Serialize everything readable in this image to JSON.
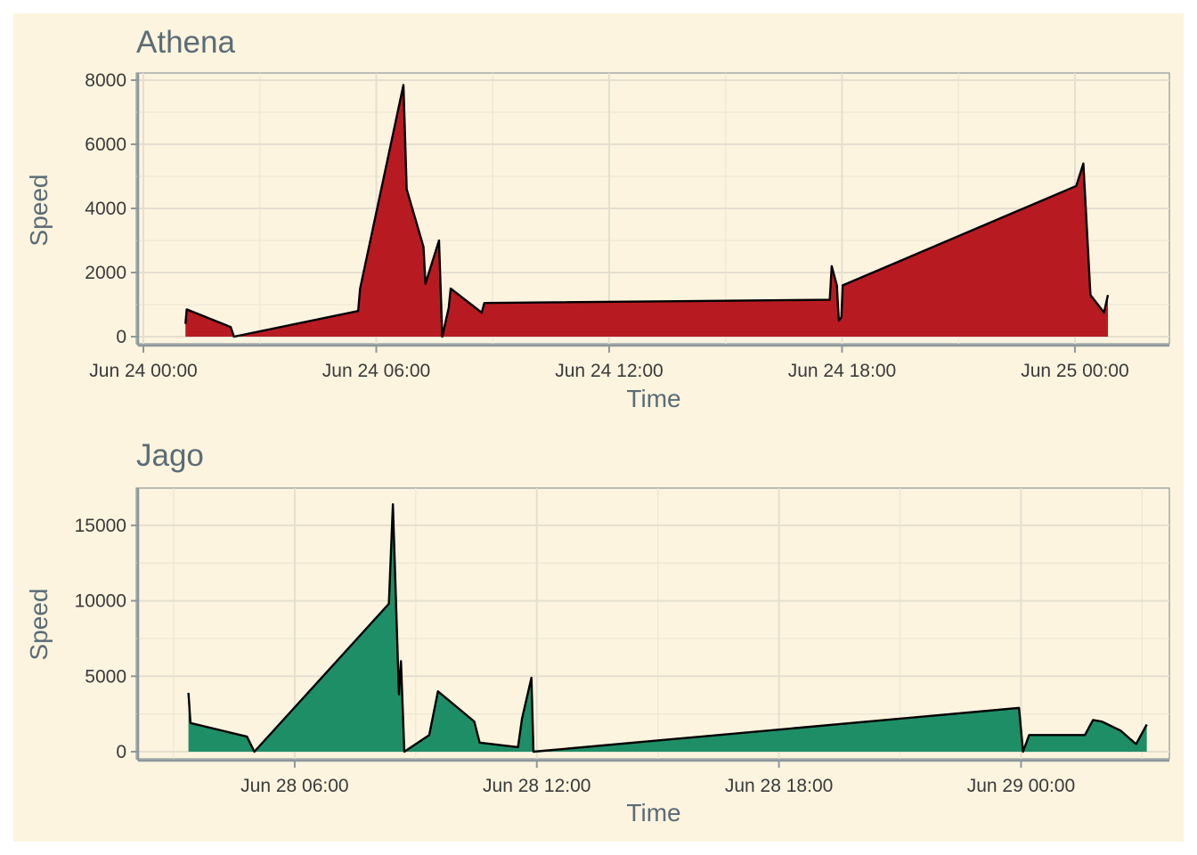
{
  "chart_data": [
    {
      "type": "area",
      "title": "Athena",
      "xlabel": "Time",
      "ylabel": "Speed",
      "fill_color": "#b71b21",
      "outline_color": "#000000",
      "grid": true,
      "legend": "none",
      "xlim": [
        "2024-06-24 00:00",
        "2024-06-25 02:15"
      ],
      "ylim": [
        0,
        8000
      ],
      "x_ticks": [
        {
          "value": "2024-06-24 00:00",
          "label": "Jun 24 00:00"
        },
        {
          "value": "2024-06-24 06:00",
          "label": "Jun 24 06:00"
        },
        {
          "value": "2024-06-24 12:00",
          "label": "Jun 24 12:00"
        },
        {
          "value": "2024-06-24 18:00",
          "label": "Jun 24 18:00"
        },
        {
          "value": "2024-06-25 00:00",
          "label": "Jun 25 00:00"
        }
      ],
      "y_ticks": [
        {
          "value": 0,
          "label": "0"
        },
        {
          "value": 2000,
          "label": "2000"
        },
        {
          "value": 4000,
          "label": "4000"
        },
        {
          "value": 6000,
          "label": "6000"
        },
        {
          "value": 8000,
          "label": "8000"
        }
      ],
      "points": [
        {
          "x": "2024-06-24 01:05",
          "y": 400
        },
        {
          "x": "2024-06-24 01:07",
          "y": 850
        },
        {
          "x": "2024-06-24 02:15",
          "y": 300
        },
        {
          "x": "2024-06-24 02:20",
          "y": 0
        },
        {
          "x": "2024-06-24 05:32",
          "y": 800
        },
        {
          "x": "2024-06-24 05:35",
          "y": 1500
        },
        {
          "x": "2024-06-24 06:42",
          "y": 7850
        },
        {
          "x": "2024-06-24 06:47",
          "y": 4600
        },
        {
          "x": "2024-06-24 07:13",
          "y": 2800
        },
        {
          "x": "2024-06-24 07:16",
          "y": 1650
        },
        {
          "x": "2024-06-24 07:37",
          "y": 3000
        },
        {
          "x": "2024-06-24 07:42",
          "y": 0
        },
        {
          "x": "2024-06-24 07:52",
          "y": 900
        },
        {
          "x": "2024-06-24 07:55",
          "y": 1500
        },
        {
          "x": "2024-06-24 08:43",
          "y": 750
        },
        {
          "x": "2024-06-24 08:47",
          "y": 1050
        },
        {
          "x": "2024-06-24 17:41",
          "y": 1150
        },
        {
          "x": "2024-06-24 17:44",
          "y": 2200
        },
        {
          "x": "2024-06-24 17:52",
          "y": 1600
        },
        {
          "x": "2024-06-24 17:55",
          "y": 500
        },
        {
          "x": "2024-06-24 17:59",
          "y": 600
        },
        {
          "x": "2024-06-24 18:01",
          "y": 1600
        },
        {
          "x": "2024-06-25 00:02",
          "y": 4700
        },
        {
          "x": "2024-06-25 00:13",
          "y": 5400
        },
        {
          "x": "2024-06-25 00:24",
          "y": 1300
        },
        {
          "x": "2024-06-25 00:45",
          "y": 750
        },
        {
          "x": "2024-06-25 00:51",
          "y": 1300
        }
      ]
    },
    {
      "type": "area",
      "title": "Jago",
      "xlabel": "Time",
      "ylabel": "Speed",
      "fill_color": "#1e8e66",
      "outline_color": "#000000",
      "grid": true,
      "legend": "none",
      "xlim": [
        "2024-06-28 02:15",
        "2024-06-29 03:30"
      ],
      "ylim": [
        0,
        17000
      ],
      "x_ticks": [
        {
          "value": "2024-06-28 06:00",
          "label": "Jun 28 06:00"
        },
        {
          "value": "2024-06-28 12:00",
          "label": "Jun 28 12:00"
        },
        {
          "value": "2024-06-28 18:00",
          "label": "Jun 28 18:00"
        },
        {
          "value": "2024-06-29 00:00",
          "label": "Jun 29 00:00"
        }
      ],
      "y_ticks": [
        {
          "value": 0,
          "label": "0"
        },
        {
          "value": 5000,
          "label": "5000"
        },
        {
          "value": 10000,
          "label": "10000"
        },
        {
          "value": 15000,
          "label": "15000"
        }
      ],
      "points": [
        {
          "x": "2024-06-28 03:22",
          "y": 3900
        },
        {
          "x": "2024-06-28 03:25",
          "y": 1900
        },
        {
          "x": "2024-06-28 04:49",
          "y": 1000
        },
        {
          "x": "2024-06-28 05:00",
          "y": 0
        },
        {
          "x": "2024-06-28 08:20",
          "y": 9800
        },
        {
          "x": "2024-06-28 08:26",
          "y": 16400
        },
        {
          "x": "2024-06-28 08:35",
          "y": 3800
        },
        {
          "x": "2024-06-28 08:38",
          "y": 6000
        },
        {
          "x": "2024-06-28 08:43",
          "y": 0
        },
        {
          "x": "2024-06-28 09:20",
          "y": 1100
        },
        {
          "x": "2024-06-28 09:33",
          "y": 4000
        },
        {
          "x": "2024-06-28 10:27",
          "y": 2000
        },
        {
          "x": "2024-06-28 10:35",
          "y": 600
        },
        {
          "x": "2024-06-28 11:32",
          "y": 300
        },
        {
          "x": "2024-06-28 11:38",
          "y": 2200
        },
        {
          "x": "2024-06-28 11:52",
          "y": 4900
        },
        {
          "x": "2024-06-28 11:55",
          "y": 0
        },
        {
          "x": "2024-06-28 23:57",
          "y": 2900
        },
        {
          "x": "2024-06-29 00:03",
          "y": 0
        },
        {
          "x": "2024-06-29 00:12",
          "y": 1100
        },
        {
          "x": "2024-06-29 01:35",
          "y": 1100
        },
        {
          "x": "2024-06-29 01:47",
          "y": 2100
        },
        {
          "x": "2024-06-29 02:00",
          "y": 2000
        },
        {
          "x": "2024-06-29 02:28",
          "y": 1400
        },
        {
          "x": "2024-06-29 02:51",
          "y": 500
        },
        {
          "x": "2024-06-29 03:07",
          "y": 1800
        }
      ]
    }
  ]
}
